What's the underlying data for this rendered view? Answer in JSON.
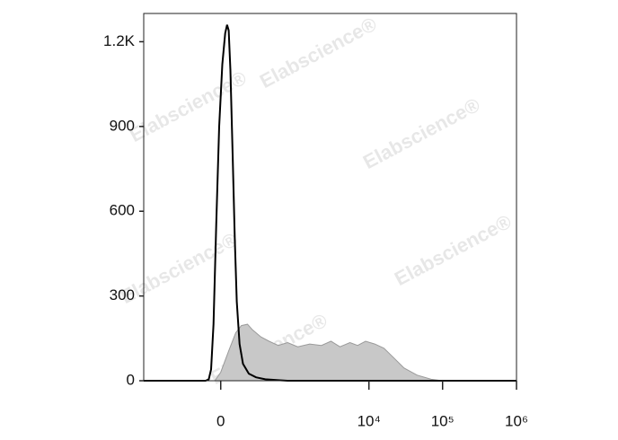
{
  "chart_data": {
    "type": "histogram-overlay",
    "watermark": "Elabscience®",
    "xscale": "biexponential",
    "xlim": [
      -1000,
      1000000
    ],
    "xticks": [
      0,
      {
        "value": 10000,
        "label": "10⁴"
      },
      {
        "value": 100000,
        "label": "10⁵"
      },
      {
        "value": 1000000,
        "label": "10⁶"
      }
    ],
    "ylim": [
      0,
      1300
    ],
    "yticks": [
      0,
      300,
      600,
      900,
      {
        "value": 1200,
        "label": "1.2K"
      }
    ],
    "series": [
      {
        "color": "#c8c8c8",
        "fill": true,
        "x": [
          -1000,
          -20,
          0,
          30,
          60,
          90,
          130,
          170,
          250,
          350,
          500,
          700,
          1000,
          1500,
          2200,
          3000,
          4000,
          5500,
          7000,
          9000,
          12000,
          16000,
          22000,
          30000,
          45000,
          70000,
          100000,
          1000000
        ],
        "values": [
          0,
          0,
          30,
          110,
          170,
          195,
          200,
          180,
          155,
          140,
          125,
          135,
          120,
          130,
          125,
          140,
          120,
          135,
          125,
          140,
          130,
          115,
          80,
          45,
          20,
          5,
          0,
          0
        ]
      },
      {
        "color": "#000000",
        "fill": false,
        "x": [
          -1000,
          -60,
          -45,
          -35,
          -25,
          -15,
          -5,
          5,
          15,
          22,
          28,
          35,
          45,
          55,
          65,
          80,
          100,
          140,
          200,
          300,
          500,
          700,
          1000000
        ],
        "values": [
          0,
          0,
          5,
          40,
          200,
          550,
          900,
          1120,
          1230,
          1260,
          1240,
          1100,
          800,
          500,
          280,
          130,
          60,
          25,
          12,
          5,
          2,
          0,
          0
        ]
      }
    ]
  }
}
